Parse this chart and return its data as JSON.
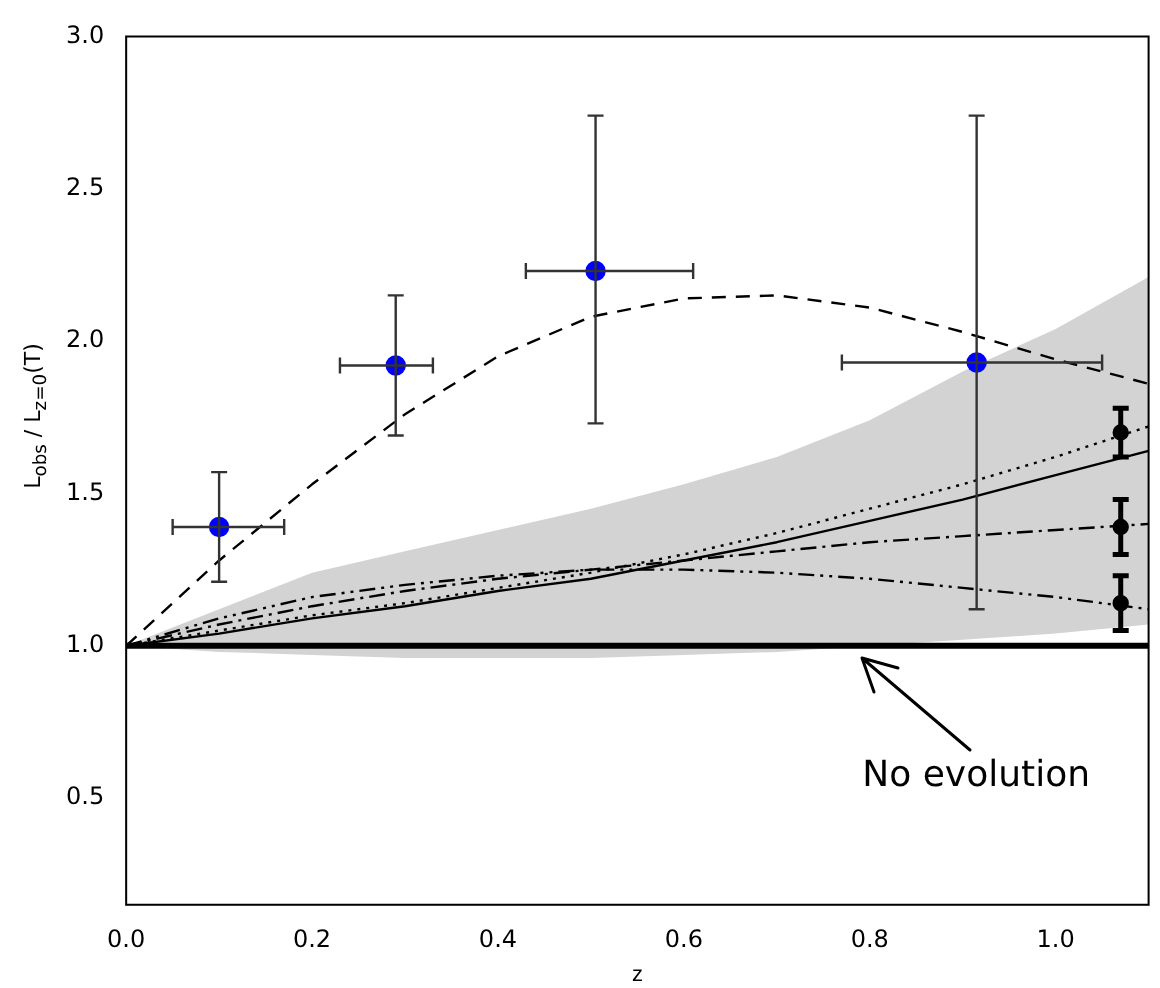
{
  "chart_data": {
    "type": "line",
    "xlabel": "z",
    "ylabel": "L$_{obs}$ / L$_{z=0}$(T)",
    "xlim": [
      0,
      1.1
    ],
    "ylim": [
      0.15,
      3.0
    ],
    "xticks": [
      {
        "value": 0,
        "label": "0.0"
      },
      {
        "value": 0.2,
        "label": "0.2"
      },
      {
        "value": 0.4,
        "label": "0.4"
      },
      {
        "value": 0.6,
        "label": "0.6"
      },
      {
        "value": 0.8,
        "label": "0.8"
      },
      {
        "value": 1,
        "label": "1.0"
      }
    ],
    "yticks": [
      0.5,
      {
        "value": 1,
        "label": "1.0"
      },
      1.5,
      {
        "value": 2,
        "label": "2.0"
      },
      2.5,
      {
        "value": 3,
        "label": "3.0"
      }
    ],
    "grid": false,
    "legend": false,
    "ref_lines": [
      {
        "axis": "y",
        "value": 1.0,
        "label": "No evolution",
        "color": "#000000"
      }
    ],
    "series": [
      {
        "color": "#000000",
        "line_style": "solid",
        "marker": "none",
        "x": [
          0,
          0.1,
          0.2,
          0.3,
          0.4,
          0.5,
          0.6,
          0.7,
          0.8,
          0.9,
          1.0,
          1.1
        ],
        "values": [
          1.0,
          1.04,
          1.09,
          1.13,
          1.18,
          1.22,
          1.28,
          1.34,
          1.41,
          1.48,
          1.56,
          1.64
        ],
        "lower": [
          1.0,
          0.98,
          0.97,
          0.96,
          0.96,
          0.96,
          0.97,
          0.98,
          1.0,
          1.02,
          1.04,
          1.07
        ],
        "upper": [
          1.0,
          1.12,
          1.24,
          1.31,
          1.38,
          1.45,
          1.53,
          1.62,
          1.74,
          1.9,
          2.04,
          2.21
        ]
      },
      {
        "color": "#000000",
        "line_style": "dotted",
        "marker": "none",
        "x": [
          0,
          0.1,
          0.2,
          0.3,
          0.4,
          0.5,
          0.6,
          0.7,
          0.8,
          0.9,
          1.0,
          1.1
        ],
        "values": [
          1.0,
          1.05,
          1.1,
          1.14,
          1.19,
          1.24,
          1.3,
          1.37,
          1.45,
          1.53,
          1.62,
          1.72
        ]
      },
      {
        "color": "#000000",
        "line_style": "dashdot",
        "marker": "none",
        "x": [
          0,
          0.1,
          0.2,
          0.3,
          0.4,
          0.5,
          0.6,
          0.7,
          0.8,
          0.9,
          1.0,
          1.1
        ],
        "values": [
          1.0,
          1.07,
          1.13,
          1.18,
          1.22,
          1.25,
          1.28,
          1.31,
          1.34,
          1.36,
          1.38,
          1.4
        ]
      },
      {
        "color": "#000000",
        "line_style": "dashdotdot",
        "marker": "none",
        "x": [
          0,
          0.1,
          0.2,
          0.3,
          0.4,
          0.5,
          0.6,
          0.7,
          0.8,
          0.9,
          1.0,
          1.1
        ],
        "values": [
          1.0,
          1.09,
          1.16,
          1.2,
          1.23,
          1.25,
          1.25,
          1.24,
          1.22,
          1.19,
          1.16,
          1.12
        ]
      },
      {
        "color": "#000000",
        "line_style": "dashed",
        "marker": "none",
        "x": [
          0,
          0.1,
          0.2,
          0.3,
          0.4,
          0.5,
          0.6,
          0.7,
          0.8,
          0.9,
          1.0,
          1.1
        ],
        "values": [
          1.0,
          1.28,
          1.53,
          1.76,
          1.95,
          2.08,
          2.14,
          2.15,
          2.11,
          2.03,
          1.94,
          1.86
        ]
      },
      {
        "type": "scatter",
        "color": "#000000",
        "marker": "circle",
        "x": [
          1.07,
          1.07,
          1.07
        ],
        "values": [
          1.7,
          1.39,
          1.14
        ],
        "errors": [
          [
            1.62,
            1.78
          ],
          [
            1.3,
            1.48
          ],
          [
            1.05,
            1.23
          ]
        ]
      },
      {
        "type": "scatter",
        "color": "#0000ff",
        "marker": "circle",
        "x": [
          0.1,
          0.29,
          0.505,
          0.915
        ],
        "values": [
          1.39,
          1.92,
          2.23,
          1.93
        ],
        "errors": [
          [
            1.21,
            1.57
          ],
          [
            1.69,
            2.15
          ],
          [
            1.73,
            2.74
          ],
          [
            1.12,
            2.74
          ]
        ],
        "xerrors": [
          [
            0.05,
            0.17
          ],
          [
            0.23,
            0.33
          ],
          [
            0.43,
            0.61
          ],
          [
            0.77,
            1.05
          ]
        ]
      }
    ]
  }
}
